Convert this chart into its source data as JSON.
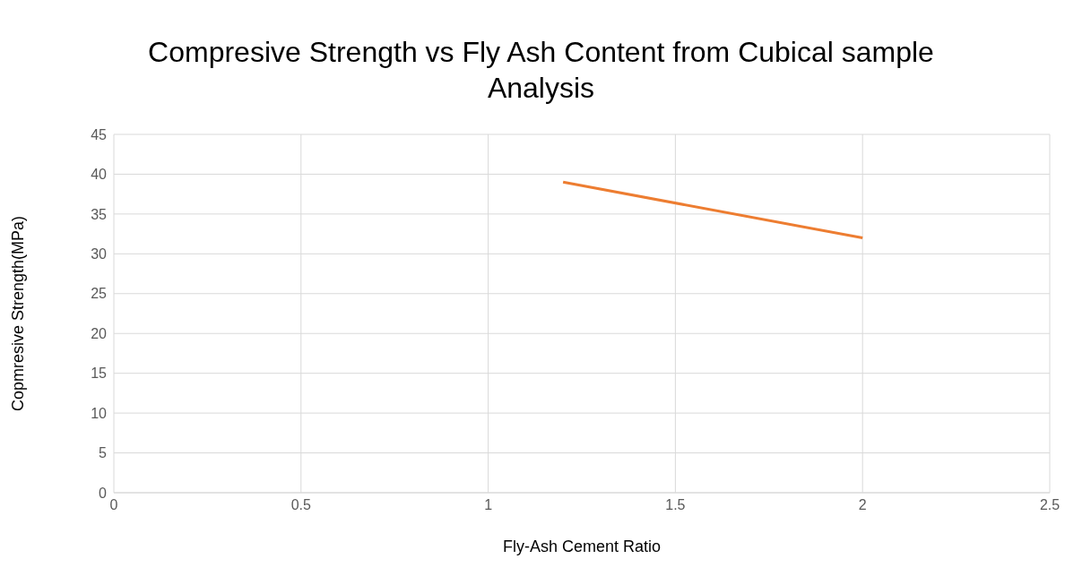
{
  "chart_data": {
    "type": "line",
    "title": "Compresive Strength vs Fly Ash Content from Cubical sample Analysis",
    "xlabel": "Fly-Ash Cement Ratio",
    "ylabel": "Copmresive Strength(MPa)",
    "x": [
      1.2,
      2
    ],
    "series": [
      {
        "color": "#ed7d31",
        "values": [
          39,
          32
        ]
      }
    ],
    "xlim": [
      0,
      2.5
    ],
    "xticks": [
      0,
      0.5,
      1,
      1.5,
      2,
      2.5
    ],
    "ylim": [
      0,
      45
    ],
    "yticks": [
      0,
      5,
      10,
      15,
      20,
      25,
      30,
      35,
      40,
      45
    ],
    "grid": true,
    "marker": "none",
    "line_style": "solid"
  }
}
